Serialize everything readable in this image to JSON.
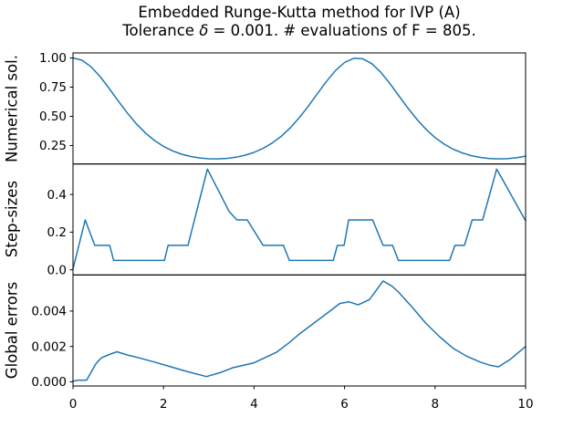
{
  "title": {
    "line1": "Embedded Runge-Kutta method for IVP (A)",
    "line2_prefix": "Tolerance ",
    "line2_delta": "δ",
    "line2_suffix": " = 0.001. # evaluations of F = 805."
  },
  "colors": {
    "line": "#1f77b4",
    "axes": "#000000",
    "text": "#000000",
    "background": "#ffffff"
  },
  "x_axis": {
    "lim": [
      0,
      10
    ],
    "ticks": [
      0,
      2,
      4,
      6,
      8,
      10
    ],
    "tick_labels": [
      "0",
      "2",
      "4",
      "6",
      "8",
      "10"
    ]
  },
  "chart_data": [
    {
      "type": "line",
      "name": "numerical-solution",
      "ylabel": "Numerical sol.",
      "ylim": [
        0.092,
        1.043
      ],
      "yticks": [
        0.25,
        0.5,
        0.75,
        1.0
      ],
      "ytick_labels": [
        "0.25",
        "0.50",
        "0.75",
        "1.00"
      ],
      "x": [
        0.0,
        0.2,
        0.4,
        0.6,
        0.8,
        1.0,
        1.2,
        1.4,
        1.6,
        1.8,
        2.0,
        2.2,
        2.4,
        2.6,
        2.8,
        3.0,
        3.2,
        3.4,
        3.6,
        3.8,
        4.0,
        4.2,
        4.4,
        4.6,
        4.8,
        5.0,
        5.2,
        5.4,
        5.6,
        5.8,
        6.0,
        6.2,
        6.4,
        6.6,
        6.8,
        7.0,
        7.2,
        7.4,
        7.6,
        7.8,
        8.0,
        8.2,
        8.4,
        8.6,
        8.8,
        9.0,
        9.2,
        9.4,
        9.6,
        9.8,
        10.0
      ],
      "y": [
        1.0,
        0.9803,
        0.9241,
        0.8397,
        0.7384,
        0.6315,
        0.5285,
        0.436,
        0.3573,
        0.2931,
        0.2426,
        0.2042,
        0.176,
        0.1562,
        0.1434,
        0.1367,
        0.1356,
        0.1399,
        0.1501,
        0.1668,
        0.1914,
        0.2253,
        0.2706,
        0.3289,
        0.4015,
        0.4885,
        0.5877,
        0.694,
        0.799,
        0.8918,
        0.961,
        0.9966,
        0.9932,
        0.9515,
        0.8776,
        0.7819,
        0.6759,
        0.5709,
        0.4733,
        0.3882,
        0.3181,
        0.262,
        0.2189,
        0.1865,
        0.1635,
        0.1479,
        0.1384,
        0.1354,
        0.1375,
        0.1451,
        0.159
      ]
    },
    {
      "type": "line",
      "name": "step-sizes",
      "ylabel": "Step-sizes",
      "ylim": [
        -0.027,
        0.562
      ],
      "yticks": [
        0.0,
        0.2,
        0.4
      ],
      "ytick_labels": [
        "0.0",
        "0.2",
        "0.4"
      ],
      "x": [
        0.0,
        0.27,
        0.48,
        0.81,
        0.9,
        2.02,
        2.1,
        2.54,
        2.97,
        3.45,
        3.62,
        3.85,
        4.2,
        4.65,
        4.78,
        5.75,
        5.84,
        5.99,
        6.09,
        6.62,
        6.85,
        7.06,
        7.19,
        8.32,
        8.44,
        8.65,
        8.82,
        9.05,
        9.36,
        10.0
      ],
      "y": [
        0.005,
        0.265,
        0.13,
        0.13,
        0.05,
        0.05,
        0.13,
        0.13,
        0.535,
        0.31,
        0.265,
        0.265,
        0.13,
        0.13,
        0.05,
        0.05,
        0.13,
        0.13,
        0.265,
        0.265,
        0.13,
        0.13,
        0.05,
        0.05,
        0.13,
        0.13,
        0.265,
        0.265,
        0.535,
        0.26
      ]
    },
    {
      "type": "line",
      "name": "global-errors",
      "ylabel": "Global errors",
      "ylim": [
        -0.00023,
        0.00604
      ],
      "yticks": [
        0.0,
        0.002,
        0.004
      ],
      "ytick_labels": [
        "0.000",
        "0.002",
        "0.004"
      ],
      "x": [
        0.0,
        0.12,
        0.3,
        0.5,
        0.62,
        0.8,
        0.97,
        1.2,
        1.5,
        1.8,
        2.1,
        2.5,
        2.95,
        3.25,
        3.53,
        4.0,
        4.5,
        4.77,
        5.0,
        5.5,
        5.9,
        6.1,
        6.3,
        6.55,
        6.85,
        7.05,
        7.2,
        7.5,
        7.8,
        8.1,
        8.4,
        8.7,
        9.0,
        9.2,
        9.4,
        9.65,
        10.0
      ],
      "y": [
        5e-05,
        0.0001,
        0.0001,
        0.001,
        0.00135,
        0.00155,
        0.0017,
        0.00152,
        0.00133,
        0.00112,
        0.0009,
        0.0006,
        0.0003,
        0.00052,
        0.0008,
        0.00108,
        0.00168,
        0.0022,
        0.0027,
        0.00366,
        0.00443,
        0.00452,
        0.00435,
        0.00465,
        0.0057,
        0.0054,
        0.00505,
        0.0042,
        0.0033,
        0.00255,
        0.0019,
        0.00145,
        0.00112,
        0.00095,
        0.00085,
        0.00125,
        0.002
      ]
    }
  ]
}
